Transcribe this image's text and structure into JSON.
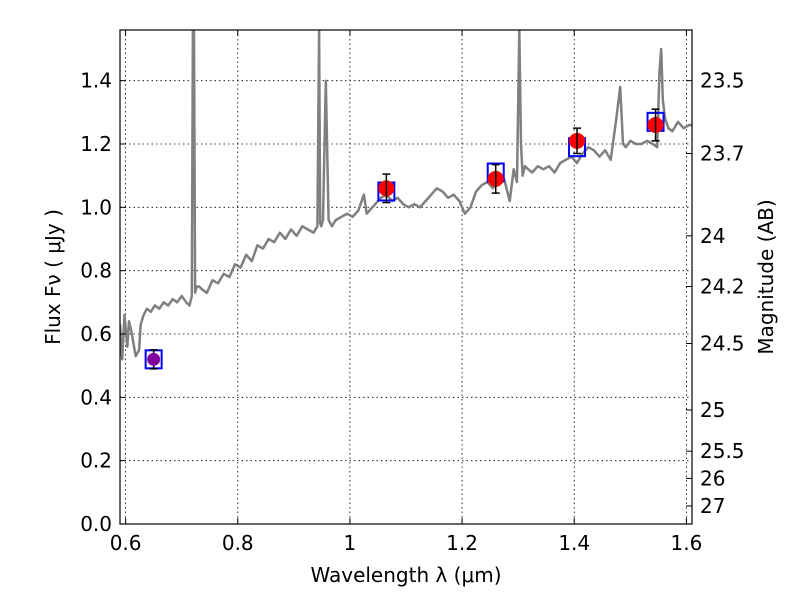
{
  "chart_data": {
    "type": "scatter",
    "xlabel": "Wavelength  λ (μm)",
    "ylabel_left": "Flux  Fν  ( μJy )",
    "ylabel_right": "Magnitude (AB)",
    "xlim": [
      0.59,
      1.61
    ],
    "ylim": [
      0.0,
      1.56
    ],
    "grid": true,
    "x_ticks": [
      0.6,
      0.8,
      1.0,
      1.2,
      1.4,
      1.6
    ],
    "x_tick_labels": [
      "0.6",
      "0.8",
      "1",
      "1.2",
      "1.4",
      "1.6"
    ],
    "y_ticks": [
      0.0,
      0.2,
      0.4,
      0.6,
      0.8,
      1.0,
      1.2,
      1.4
    ],
    "y_tick_labels": [
      "0.0",
      "0.2",
      "0.4",
      "0.6",
      "0.8",
      "1.0",
      "1.2",
      "1.4"
    ],
    "right_ticks": [
      {
        "label": "23.5",
        "flux": 1.4
      },
      {
        "label": "23.7",
        "flux": 1.17
      },
      {
        "label": "24",
        "flux": 0.91
      },
      {
        "label": "24.2",
        "flux": 0.75
      },
      {
        "label": "24.5",
        "flux": 0.57
      },
      {
        "label": "25",
        "flux": 0.36
      },
      {
        "label": "25.5",
        "flux": 0.23
      },
      {
        "label": "26",
        "flux": 0.144
      },
      {
        "label": "27",
        "flux": 0.057
      }
    ],
    "template_spectrum": {
      "color": "#808080",
      "x": [
        0.59,
        0.594,
        0.598,
        0.603,
        0.606,
        0.61,
        0.614,
        0.618,
        0.624,
        0.627,
        0.632,
        0.638,
        0.645,
        0.652,
        0.66,
        0.668,
        0.676,
        0.684,
        0.692,
        0.7,
        0.708,
        0.714,
        0.718,
        0.72,
        0.722,
        0.724,
        0.727,
        0.731,
        0.737,
        0.745,
        0.755,
        0.765,
        0.775,
        0.785,
        0.795,
        0.805,
        0.815,
        0.825,
        0.835,
        0.845,
        0.855,
        0.865,
        0.875,
        0.885,
        0.895,
        0.905,
        0.915,
        0.925,
        0.935,
        0.942,
        0.945,
        0.947,
        0.949,
        0.952,
        0.957,
        0.962,
        0.965,
        0.968,
        0.971,
        0.975,
        0.985,
        0.995,
        1.005,
        1.015,
        1.025,
        1.03,
        1.035,
        1.045,
        1.055,
        1.065,
        1.075,
        1.085,
        1.095,
        1.105,
        1.115,
        1.125,
        1.135,
        1.145,
        1.155,
        1.165,
        1.175,
        1.185,
        1.195,
        1.205,
        1.215,
        1.225,
        1.235,
        1.245,
        1.255,
        1.265,
        1.275,
        1.285,
        1.292,
        1.298,
        1.302,
        1.305,
        1.308,
        1.312,
        1.318,
        1.325,
        1.335,
        1.345,
        1.355,
        1.365,
        1.375,
        1.385,
        1.395,
        1.405,
        1.415,
        1.425,
        1.435,
        1.445,
        1.455,
        1.465,
        1.475,
        1.482,
        1.487,
        1.492,
        1.5,
        1.51,
        1.52,
        1.53,
        1.54,
        1.548,
        1.552,
        1.555,
        1.558,
        1.562,
        1.568,
        1.575,
        1.585,
        1.595,
        1.605,
        1.61
      ],
      "y": [
        0.63,
        0.52,
        0.66,
        0.56,
        0.64,
        0.61,
        0.57,
        0.53,
        0.55,
        0.63,
        0.66,
        0.68,
        0.67,
        0.69,
        0.68,
        0.7,
        0.69,
        0.71,
        0.7,
        0.72,
        0.7,
        0.69,
        0.72,
        1.56,
        1.56,
        0.73,
        0.75,
        0.75,
        0.74,
        0.73,
        0.77,
        0.76,
        0.79,
        0.78,
        0.82,
        0.81,
        0.85,
        0.83,
        0.88,
        0.87,
        0.9,
        0.89,
        0.92,
        0.9,
        0.93,
        0.91,
        0.94,
        0.93,
        0.92,
        0.94,
        1.56,
        0.95,
        0.94,
        0.96,
        1.4,
        0.96,
        0.95,
        0.94,
        0.95,
        0.96,
        0.97,
        0.98,
        0.97,
        0.99,
        1.04,
        0.98,
        0.99,
        1.01,
        1.03,
        1.04,
        1.02,
        1.03,
        1.01,
        1.0,
        1.01,
        1.0,
        1.02,
        1.04,
        1.06,
        1.05,
        1.03,
        1.04,
        1.02,
        0.98,
        1.0,
        1.05,
        1.07,
        1.08,
        1.06,
        1.1,
        1.09,
        1.02,
        1.12,
        1.08,
        1.56,
        1.2,
        1.1,
        1.13,
        1.12,
        1.11,
        1.13,
        1.12,
        1.13,
        1.11,
        1.14,
        1.15,
        1.16,
        1.14,
        1.17,
        1.19,
        1.18,
        1.16,
        1.18,
        1.15,
        1.28,
        1.38,
        1.2,
        1.19,
        1.21,
        1.2,
        1.2,
        1.21,
        1.2,
        1.19,
        1.43,
        1.5,
        1.34,
        1.28,
        1.25,
        1.24,
        1.27,
        1.25,
        1.26,
        1.26
      ]
    },
    "model_points": {
      "marker": "square",
      "edge_color": "#0000ff",
      "x": [
        0.65,
        1.065,
        1.26,
        1.405,
        1.545
      ],
      "y": [
        0.52,
        1.05,
        1.11,
        1.19,
        1.27
      ]
    },
    "observed_points": {
      "color": "#ff0000",
      "x": [
        1.065,
        1.26,
        1.405,
        1.545
      ],
      "y": [
        1.06,
        1.09,
        1.21,
        1.26
      ],
      "yerr": [
        0.045,
        0.045,
        0.04,
        0.05
      ]
    },
    "upper_limit_point": {
      "color": "#8000a0",
      "x": 0.65,
      "y": 0.52,
      "yerr": 0.03
    }
  }
}
